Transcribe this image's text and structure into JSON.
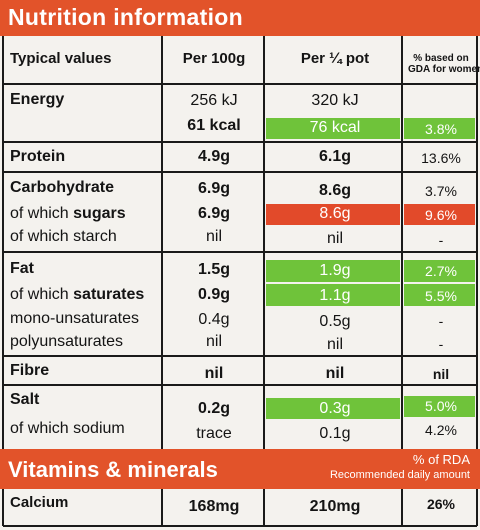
{
  "header": {
    "title": "Nutrition information"
  },
  "columns": {
    "typical": "Typical values",
    "per100": "Per 100g",
    "perpot": "Per ¼ pot",
    "gda_line1": "% based on",
    "gda_line2": "GDA for women"
  },
  "rows": {
    "energy": {
      "label": "Energy",
      "per100_kj": "256 kJ",
      "per100_kcal": "61 kcal",
      "perpot_kj": "320 kJ",
      "perpot_kcal": "76 kcal",
      "gda": "3.8%"
    },
    "protein": {
      "label": "Protein",
      "per100": "4.9g",
      "perpot": "6.1g",
      "gda": "13.6%"
    },
    "carbohydrate": {
      "label": "Carbohydrate",
      "per100": "6.9g",
      "perpot": "8.6g",
      "gda": "3.7%"
    },
    "sugars": {
      "label_pre": "of which ",
      "label_bold": "sugars",
      "per100": "6.9g",
      "perpot": "8.6g",
      "gda": "9.6%"
    },
    "starch": {
      "label": "of which starch",
      "per100": "nil",
      "perpot": "nil",
      "gda": "-"
    },
    "fat": {
      "label": "Fat",
      "per100": "1.5g",
      "perpot": "1.9g",
      "gda": "2.7%"
    },
    "saturates": {
      "label_pre": "of which ",
      "label_bold": "saturates",
      "per100": "0.9g",
      "perpot": "1.1g",
      "gda": "5.5%"
    },
    "mono": {
      "label": "mono-unsaturates",
      "per100": "0.4g",
      "perpot": "0.5g",
      "gda": "-"
    },
    "poly": {
      "label": "polyunsaturates",
      "per100": "nil",
      "perpot": "nil",
      "gda": "-"
    },
    "fibre": {
      "label": "Fibre",
      "per100": "nil",
      "perpot": "nil",
      "gda": "nil"
    },
    "salt": {
      "label": "Salt",
      "per100": "0.2g",
      "perpot": "0.3g",
      "gda": "5.0%"
    },
    "sodium": {
      "label": "of which sodium",
      "per100": "trace",
      "perpot": "0.1g",
      "gda": "4.2%"
    }
  },
  "vitamins": {
    "title": "Vitamins & minerals",
    "pct_label": "% of RDA",
    "rec_label": "Recommended daily amount",
    "calcium": {
      "label": "Calcium",
      "per100": "168mg",
      "perpot": "210mg",
      "pct": "26%"
    }
  },
  "colors": {
    "orange": "#e2532a",
    "green": "#6fc33a",
    "red": "#e24a2a"
  }
}
